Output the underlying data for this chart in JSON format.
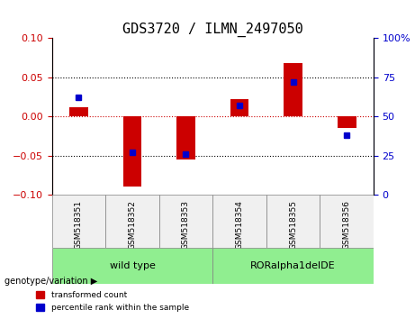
{
  "title": "GDS3720 / ILMN_2497050",
  "samples": [
    "GSM518351",
    "GSM518352",
    "GSM518353",
    "GSM518354",
    "GSM518355",
    "GSM518356"
  ],
  "groups": [
    "wild type",
    "wild type",
    "wild type",
    "RORalpha1delDE",
    "RORalpha1delDE",
    "RORalpha1delDE"
  ],
  "group_labels": [
    "wild type",
    "RORalpha1delDE"
  ],
  "group_colors": [
    "#90EE90",
    "#90EE90"
  ],
  "red_values": [
    0.012,
    -0.09,
    -0.055,
    0.022,
    0.068,
    -0.015
  ],
  "blue_values_pct": [
    62,
    27,
    26,
    57,
    72,
    38
  ],
  "ylim_left": [
    -0.1,
    0.1
  ],
  "ylim_right": [
    0,
    100
  ],
  "yticks_left": [
    -0.1,
    -0.05,
    0,
    0.05,
    0.1
  ],
  "yticks_right": [
    0,
    25,
    50,
    75,
    100
  ],
  "bar_width": 0.35,
  "red_color": "#CC0000",
  "blue_color": "#0000CC",
  "legend_red": "transformed count",
  "legend_blue": "percentile rank within the sample",
  "genotype_label": "genotype/variation",
  "bg_color": "#f0f0f0"
}
